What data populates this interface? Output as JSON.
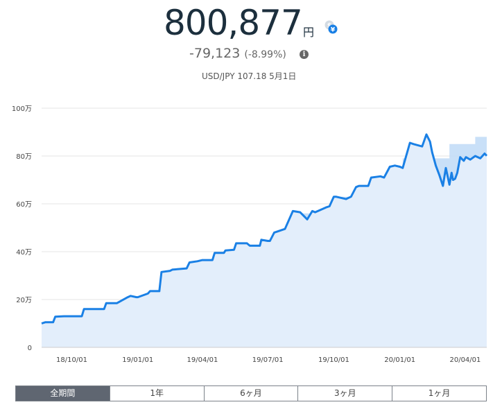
{
  "header": {
    "total": "800,877",
    "unit": "円",
    "change": "-79,123",
    "change_pct": "(-8.99%)",
    "info_glyph": "i",
    "rate": "USD/JPY 107.18 5月1日",
    "fx_icon": "currency-exchange-icon"
  },
  "colors": {
    "line": "#1a80e5",
    "cost_fill": "#bfdaf7",
    "value_fill": "#e3eefb",
    "grid": "#e5e5e5",
    "active_tab": "#5f6671"
  },
  "tabs": [
    {
      "label": "全期間",
      "active": true
    },
    {
      "label": "1年",
      "active": false
    },
    {
      "label": "6ヶ月",
      "active": false
    },
    {
      "label": "3ヶ月",
      "active": false
    },
    {
      "label": "1ヶ月",
      "active": false
    }
  ],
  "chart_data": {
    "type": "area",
    "y_unit": "万円",
    "ylim": [
      0,
      100
    ],
    "yticks": [
      0,
      20,
      40,
      60,
      80,
      100
    ],
    "ytick_labels": [
      "0",
      "20万",
      "40万",
      "60万",
      "80万",
      "100万"
    ],
    "xlim": [
      "2018-08-20",
      "2020-05-01"
    ],
    "xticks": [
      "2018-10-01",
      "2019-01-01",
      "2019-04-01",
      "2019-07-01",
      "2019-10-01",
      "2020-01-01",
      "2020-04-01"
    ],
    "xtick_labels": [
      "18/10/01",
      "19/01/01",
      "19/04/01",
      "19/07/01",
      "19/10/01",
      "20/01/01",
      "20/04/01"
    ],
    "grid": true,
    "series": [
      {
        "role": "valuation",
        "x": [
          "2018-08-20",
          "2018-08-25",
          "2018-09-05",
          "2018-09-08",
          "2018-09-20",
          "2018-09-22",
          "2018-10-15",
          "2018-10-18",
          "2018-10-29",
          "2018-11-01",
          "2018-11-15",
          "2018-11-18",
          "2018-12-01",
          "2018-12-03",
          "2018-12-18",
          "2018-12-22",
          "2018-12-30",
          "2019-01-01",
          "2019-01-15",
          "2019-01-18",
          "2019-01-31",
          "2019-02-03",
          "2019-02-15",
          "2019-02-18",
          "2019-03-10",
          "2019-03-14",
          "2019-03-25",
          "2019-04-01",
          "2019-04-15",
          "2019-04-18",
          "2019-05-01",
          "2019-05-03",
          "2019-05-15",
          "2019-05-18",
          "2019-06-02",
          "2019-06-06",
          "2019-06-20",
          "2019-06-22",
          "2019-07-01",
          "2019-07-04",
          "2019-07-10",
          "2019-07-15",
          "2019-07-25",
          "2019-08-05",
          "2019-08-15",
          "2019-08-25",
          "2019-09-01",
          "2019-09-05",
          "2019-09-20",
          "2019-09-25",
          "2019-10-01",
          "2019-10-04",
          "2019-10-18",
          "2019-10-25",
          "2019-11-01",
          "2019-11-05",
          "2019-11-18",
          "2019-11-22",
          "2019-12-05",
          "2019-12-10",
          "2019-12-18",
          "2019-12-25",
          "2020-01-01",
          "2020-01-05",
          "2020-01-15",
          "2020-01-20",
          "2020-02-01",
          "2020-02-07",
          "2020-02-12",
          "2020-02-15",
          "2020-02-20",
          "2020-02-25",
          "2020-03-01",
          "2020-03-05",
          "2020-03-10",
          "2020-03-13",
          "2020-03-15",
          "2020-03-18",
          "2020-03-21",
          "2020-03-25",
          "2020-03-30",
          "2020-04-02",
          "2020-04-08",
          "2020-04-15",
          "2020-04-22",
          "2020-04-28",
          "2020-05-01"
        ],
        "y": [
          10.0,
          10.5,
          10.5,
          12.8,
          13.0,
          13.0,
          13.0,
          16.0,
          16.0,
          16.0,
          16.0,
          18.5,
          18.5,
          18.5,
          21.0,
          21.5,
          21.0,
          21.0,
          22.5,
          23.5,
          23.5,
          31.5,
          32.0,
          32.5,
          33.0,
          35.5,
          36.0,
          36.5,
          36.5,
          39.5,
          39.5,
          40.5,
          40.8,
          43.5,
          43.5,
          42.5,
          42.5,
          45.0,
          44.5,
          44.5,
          48.0,
          48.5,
          49.5,
          57.0,
          56.5,
          53.5,
          57.0,
          56.5,
          58.5,
          59.0,
          63.0,
          63.0,
          62.0,
          63.0,
          67.0,
          67.5,
          67.5,
          71.0,
          71.5,
          71.0,
          75.5,
          76.0,
          75.5,
          75.0,
          85.5,
          85.0,
          84.0,
          89.0,
          86.0,
          81.5,
          76.0,
          72.0,
          67.5,
          75.0,
          68.0,
          73.0,
          70.0,
          70.5,
          73.0,
          79.5,
          78.0,
          79.5,
          78.5,
          80.0,
          79.0,
          81.0,
          80.1
        ]
      },
      {
        "role": "principal",
        "x": [
          "2018-08-20",
          "2018-09-08",
          "2018-10-18",
          "2018-11-18",
          "2018-12-18",
          "2019-01-18",
          "2019-02-03",
          "2019-03-14",
          "2019-04-18",
          "2019-05-18",
          "2019-06-22",
          "2019-07-15",
          "2019-08-05",
          "2019-09-01",
          "2019-10-01",
          "2019-11-05",
          "2019-11-22",
          "2019-12-18",
          "2020-01-05",
          "2020-02-07",
          "2020-03-10",
          "2020-04-15",
          "2020-05-01"
        ],
        "y": [
          10,
          13,
          16,
          18.5,
          21,
          24,
          31.5,
          35.5,
          39.5,
          43,
          45,
          48,
          56,
          57,
          63,
          65,
          69,
          71,
          79,
          79,
          85,
          88,
          88
        ]
      }
    ]
  }
}
